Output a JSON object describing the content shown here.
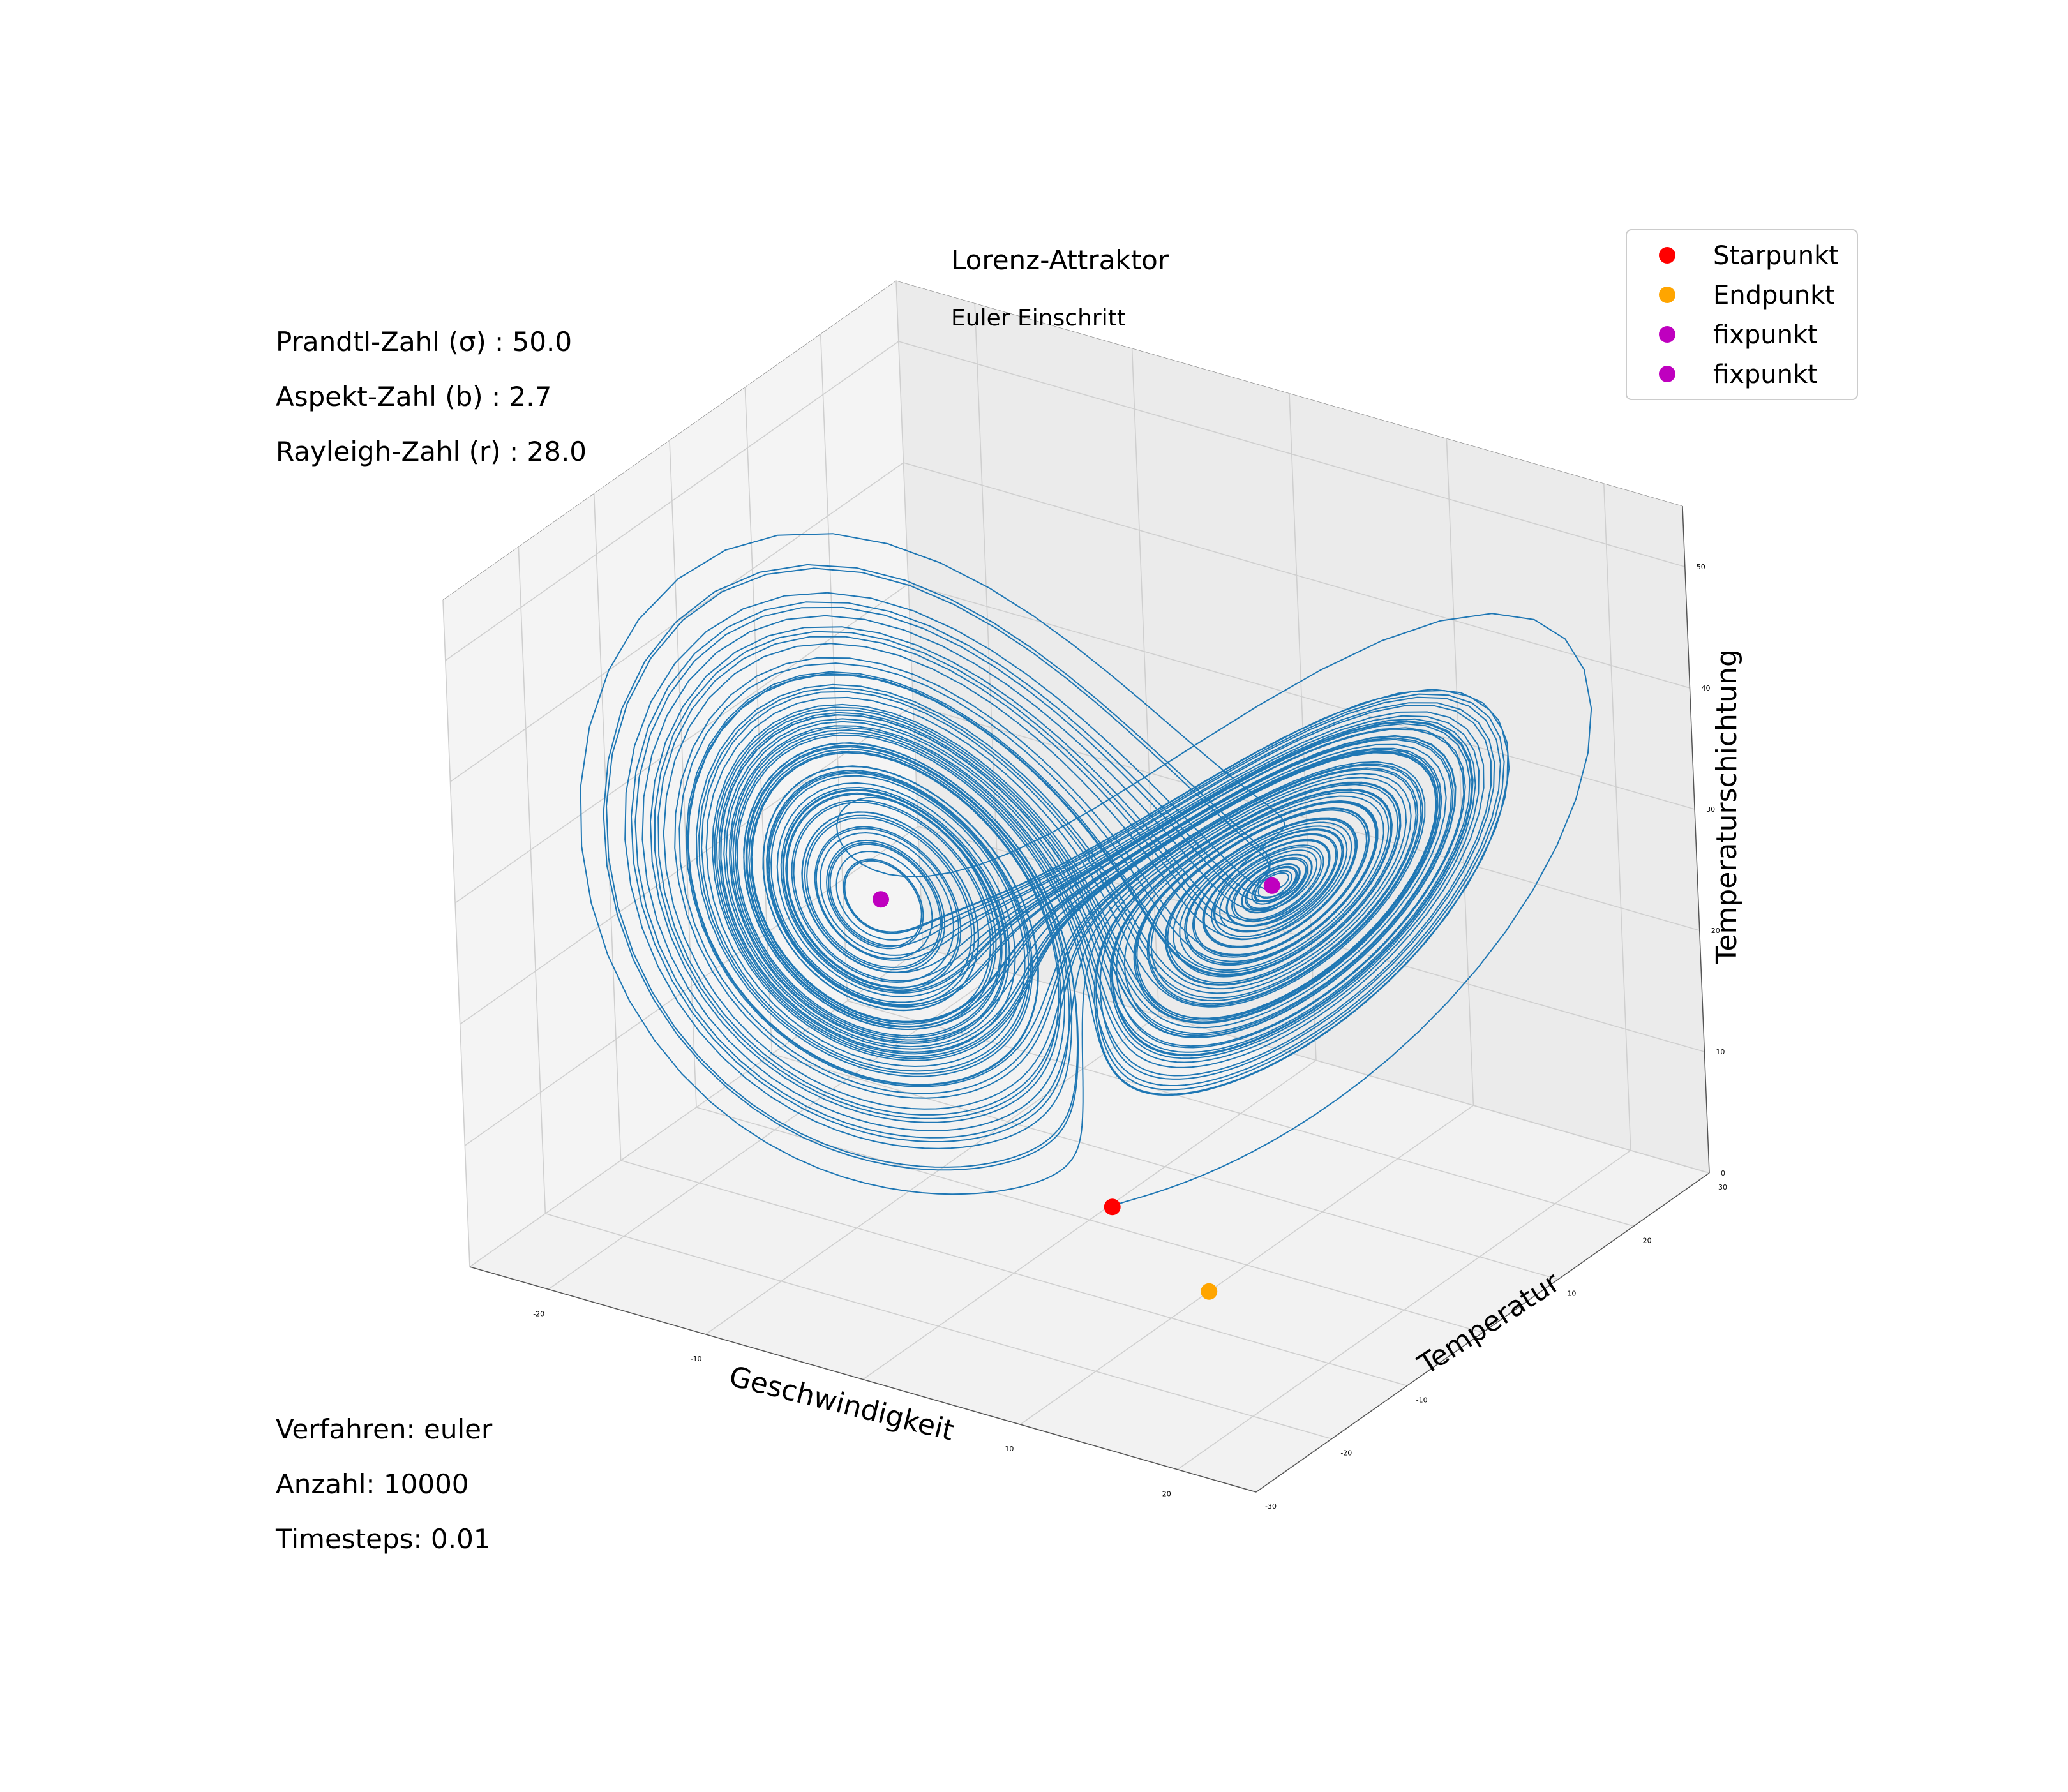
{
  "chart_data": {
    "type": "line3d",
    "title": "Lorenz-Attraktor",
    "subtitle": "Euler Einschritt",
    "xlabel": "Geschwindigkeit",
    "ylabel": "Temperatur",
    "zlabel": "Temperaturschichtung",
    "xlim": [
      -25,
      25
    ],
    "ylim": [
      -30,
      30
    ],
    "zlim": [
      0,
      55
    ],
    "x_ticks": [
      "-20",
      "-10",
      "10",
      "20"
    ],
    "x_tick_values": [
      -20,
      -10,
      10,
      20
    ],
    "y_ticks": [
      "-30",
      "-20",
      "-10",
      "10",
      "20",
      "30"
    ],
    "y_tick_values": [
      -30,
      -20,
      -10,
      10,
      20,
      30
    ],
    "z_ticks": [
      "0",
      "10",
      "20",
      "30",
      "40",
      "50"
    ],
    "z_tick_values": [
      0,
      10,
      20,
      30,
      40,
      50
    ],
    "grid": true,
    "legend_position": "top-right",
    "trajectory_color": "#1f77b4",
    "legend": [
      {
        "label": "Starpunkt",
        "color": "#ff0000"
      },
      {
        "label": "Endpunkt",
        "color": "#ffa500"
      },
      {
        "label": "fixpunkt",
        "color": "#bf00bf"
      },
      {
        "label": "fixpunkt",
        "color": "#bf00bf"
      }
    ],
    "points": [
      {
        "name": "Starpunkt",
        "x": 1,
        "y": 1,
        "z": 1,
        "color": "#ff0000"
      },
      {
        "name": "Endpunkt",
        "x": 10,
        "y": -5,
        "z": 0,
        "color": "#ffa500"
      },
      {
        "name": "fixpunkt",
        "x": -8.4,
        "y": -8.4,
        "z": 27,
        "color": "#bf00bf"
      },
      {
        "name": "fixpunkt",
        "x": 8.4,
        "y": 8.4,
        "z": 27,
        "color": "#bf00bf"
      }
    ]
  },
  "annotations": {
    "prandtl": "Prandtl-Zahl (σ) : 50.0",
    "aspekt": "Aspekt-Zahl (b) : 2.7",
    "rayleigh": "Rayleigh-Zahl (r) : 28.0",
    "verfahren": "Verfahren: euler",
    "anzahl": "Anzahl: 10000",
    "timesteps": "Timesteps: 0.01"
  }
}
